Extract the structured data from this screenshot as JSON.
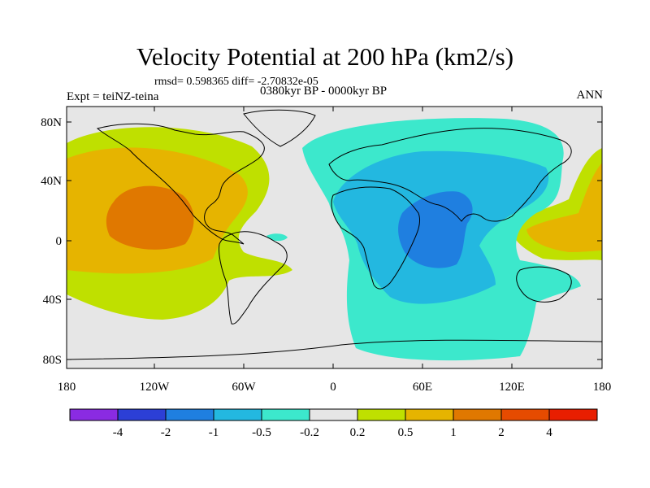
{
  "title": "Velocity Potential at 200 hPa (km2/s)",
  "stats": "rmsd= 0.598365  diff= -2.70832e-05",
  "left_string": "Expt = teiNZ-teina",
  "center_string": "0380kyr BP - 0000kyr BP",
  "right_string": "ANN",
  "y_ticks": [
    "80N",
    "40N",
    "0",
    "40S",
    "80S"
  ],
  "x_ticks": [
    "180",
    "120W",
    "60W",
    "0",
    "60E",
    "120E",
    "180"
  ],
  "colorbar": {
    "labels": [
      "-4",
      "-2",
      "-1",
      "-0.5",
      "-0.2",
      "0.2",
      "0.5",
      "1",
      "2",
      "4"
    ],
    "colors": [
      "#8a2be2",
      "#2c3fd6",
      "#1f7fe0",
      "#23b8e0",
      "#3ce8cc",
      "#e6e6e6",
      "#bfe000",
      "#e6b400",
      "#e07800",
      "#e64b00",
      "#e81e00"
    ]
  },
  "fill_colors": {
    "background": "#e6e6e6",
    "light_negative": "#3ce8cc",
    "mid_negative": "#23b8e0",
    "strong_negative": "#1f7fe0",
    "light_positive": "#bfe000",
    "mid_positive": "#e6b400",
    "strong_positive": "#e07800"
  }
}
